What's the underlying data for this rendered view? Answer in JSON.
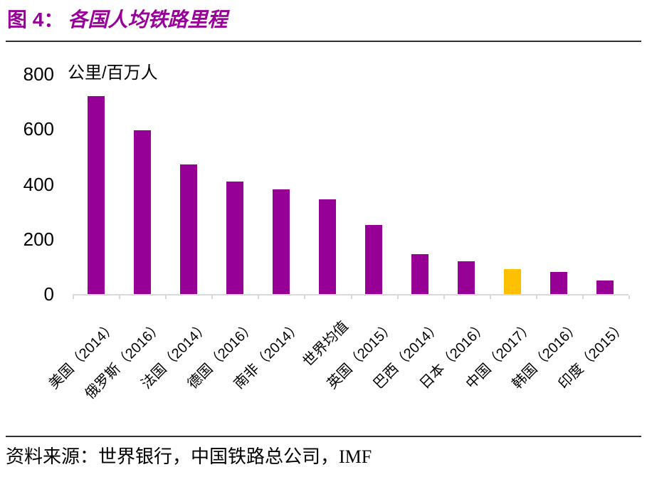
{
  "header": {
    "title_prefix": "图 4：",
    "title": "各国人均铁路里程"
  },
  "chart_data": {
    "type": "bar",
    "title": "各国人均铁路里程",
    "unit_label": "公里/百万人",
    "ylabel": "公里/百万人",
    "xlabel": "",
    "categories": [
      "美国（2014）",
      "俄罗斯（2016）",
      "法国（2014）",
      "德国（2016）",
      "南非（2014）",
      "世界均值",
      "英国（2015）",
      "巴西（2014）",
      "日本（2016）",
      "中国（2017）",
      "韩国（2016）",
      "印度（2015）"
    ],
    "values": [
      720,
      595,
      470,
      410,
      380,
      345,
      250,
      145,
      120,
      90,
      80,
      50
    ],
    "highlight_index": 9,
    "bar_color": "#970095",
    "highlight_color": "#FFC000",
    "axis_color": "#D9D9D9",
    "title_color": "#990099",
    "ylim": [
      0,
      800
    ],
    "yticks": [
      0,
      200,
      400,
      600,
      800
    ],
    "grid": false,
    "legend": false
  },
  "footer": {
    "source": "资料来源：世界银行，中国铁路总公司，IMF"
  }
}
